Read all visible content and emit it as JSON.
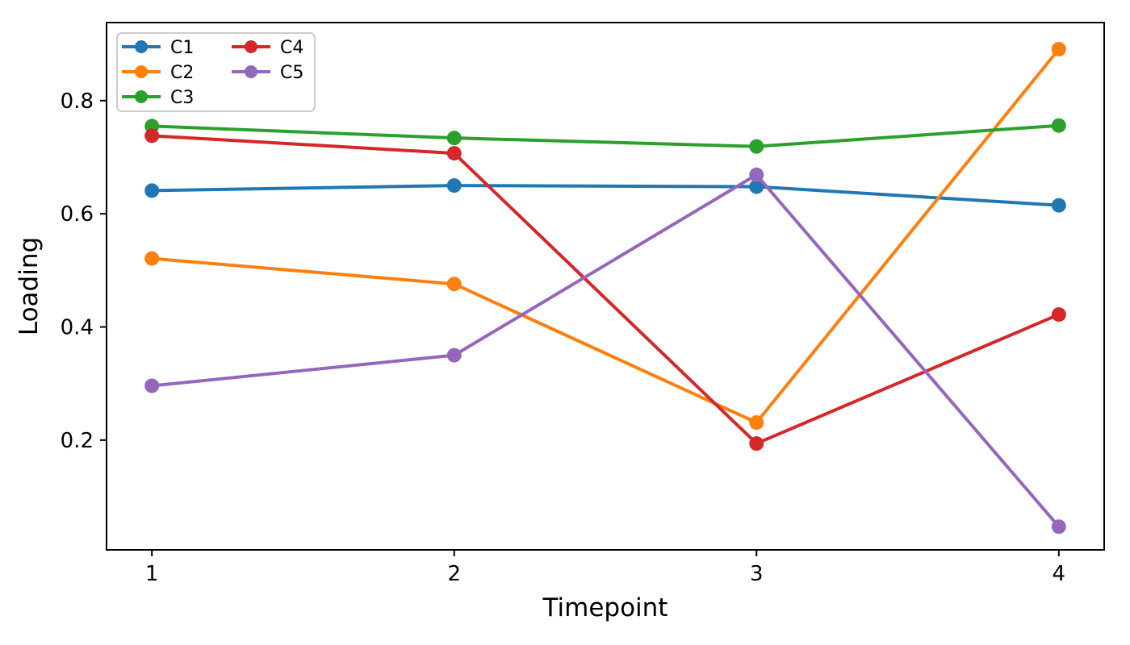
{
  "figure": {
    "background_color": "#ffffff",
    "text_color": "#000000",
    "spine_color": "#000000",
    "legend_border_color": "#cccccc"
  },
  "chart_data": {
    "type": "line",
    "title": "",
    "xlabel": "Timepoint",
    "ylabel": "Loading",
    "x": [
      1,
      2,
      3,
      4
    ],
    "x_tick_labels": [
      "1",
      "2",
      "3",
      "4"
    ],
    "y_ticks": [
      0.2,
      0.4,
      0.6,
      0.8
    ],
    "y_tick_labels": [
      "0.2",
      "0.4",
      "0.6",
      "0.8"
    ],
    "xlim": [
      0.85,
      4.15
    ],
    "ylim": [
      0.006,
      0.938
    ],
    "grid": false,
    "marker": "circle",
    "legend": {
      "position": "upper-left",
      "columns": 2,
      "column_entries": [
        [
          "C1",
          "C2",
          "C3"
        ],
        [
          "C4",
          "C5"
        ]
      ]
    },
    "series": [
      {
        "name": "C1",
        "color": "#1f77b4",
        "values": [
          0.641,
          0.65,
          0.648,
          0.615
        ]
      },
      {
        "name": "C2",
        "color": "#ff7f0e",
        "values": [
          0.521,
          0.476,
          0.231,
          0.891
        ]
      },
      {
        "name": "C3",
        "color": "#2ca02c",
        "values": [
          0.755,
          0.734,
          0.719,
          0.756
        ]
      },
      {
        "name": "C4",
        "color": "#d62728",
        "values": [
          0.738,
          0.707,
          0.194,
          0.422
        ]
      },
      {
        "name": "C5",
        "color": "#9467bd",
        "values": [
          0.296,
          0.35,
          0.669,
          0.047
        ]
      }
    ]
  }
}
